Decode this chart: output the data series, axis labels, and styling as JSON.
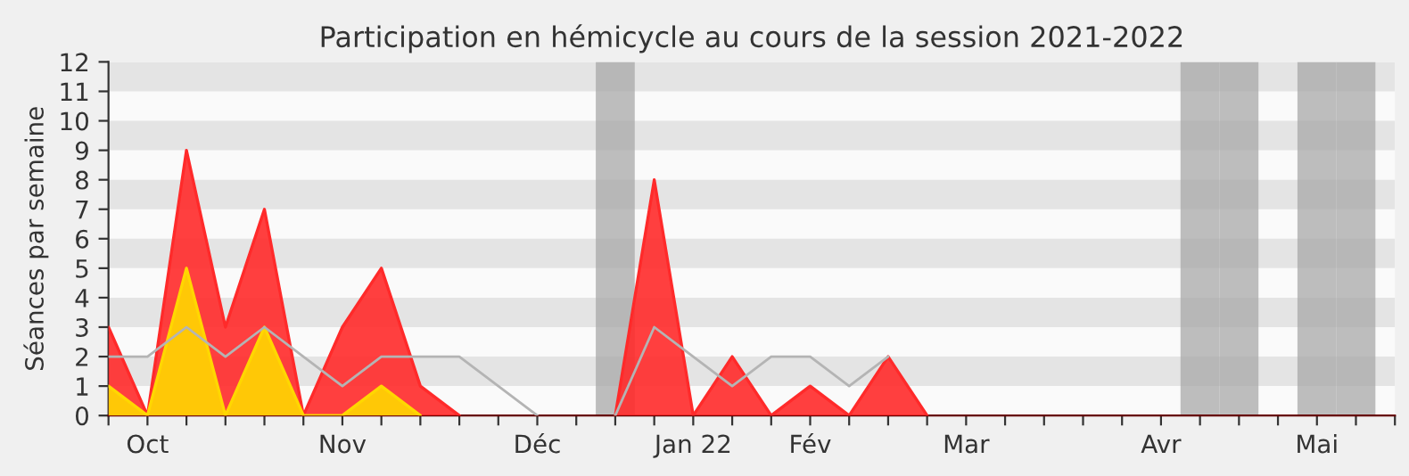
{
  "chart_data": {
    "type": "area",
    "title": "Participation en hémicycle au cours de la session 2021-2022",
    "ylabel": "Séances par semaine",
    "categories": [
      null,
      "Oct",
      null,
      null,
      null,
      null,
      "Nov",
      null,
      null,
      null,
      null,
      "Déc",
      null,
      null,
      null,
      "Jan 22",
      null,
      null,
      "Fév",
      null,
      null,
      null,
      "Mar",
      null,
      null,
      null,
      null,
      "Avr",
      null,
      null,
      null,
      "Mai",
      null,
      null
    ],
    "series": [
      {
        "type": "bar",
        "color": "#a8a8a8",
        "values": [
          null,
          null,
          null,
          null,
          null,
          null,
          null,
          null,
          null,
          null,
          null,
          null,
          null,
          12,
          null,
          null,
          null,
          null,
          null,
          null,
          null,
          null,
          null,
          null,
          null,
          null,
          null,
          null,
          12,
          12,
          null,
          12,
          12,
          null
        ]
      },
      {
        "color": "#ff2a2a",
        "values": [
          3,
          0,
          9,
          3,
          7,
          0,
          3,
          5,
          1,
          0,
          null,
          null,
          null,
          0,
          8,
          0,
          2,
          0,
          1,
          0,
          2,
          0,
          null,
          null,
          null,
          null,
          null,
          null,
          null,
          null,
          null,
          null,
          null,
          null
        ]
      },
      {
        "color": "#ffd700",
        "values": [
          1,
          0,
          5,
          0,
          3,
          0,
          0,
          1,
          0,
          null,
          null,
          null,
          null,
          null,
          null,
          null,
          null,
          null,
          null,
          null,
          null,
          null,
          null,
          null,
          null,
          null,
          null,
          null,
          null,
          null,
          null,
          null,
          null,
          null
        ]
      },
      {
        "type": "line",
        "color": "#b4b4b4",
        "values": [
          2,
          2,
          3,
          2,
          3,
          2,
          1,
          2,
          2,
          2,
          1,
          0,
          null,
          0,
          3,
          2,
          1,
          2,
          2,
          1,
          2,
          null,
          null,
          null,
          null,
          null,
          null,
          null,
          null,
          null,
          null,
          null,
          null,
          null
        ]
      }
    ],
    "ylim": [
      0,
      12
    ],
    "yticks": [
      0,
      1,
      2,
      3,
      4,
      5,
      6,
      7,
      8,
      9,
      10,
      11,
      12
    ],
    "legend": false
  }
}
